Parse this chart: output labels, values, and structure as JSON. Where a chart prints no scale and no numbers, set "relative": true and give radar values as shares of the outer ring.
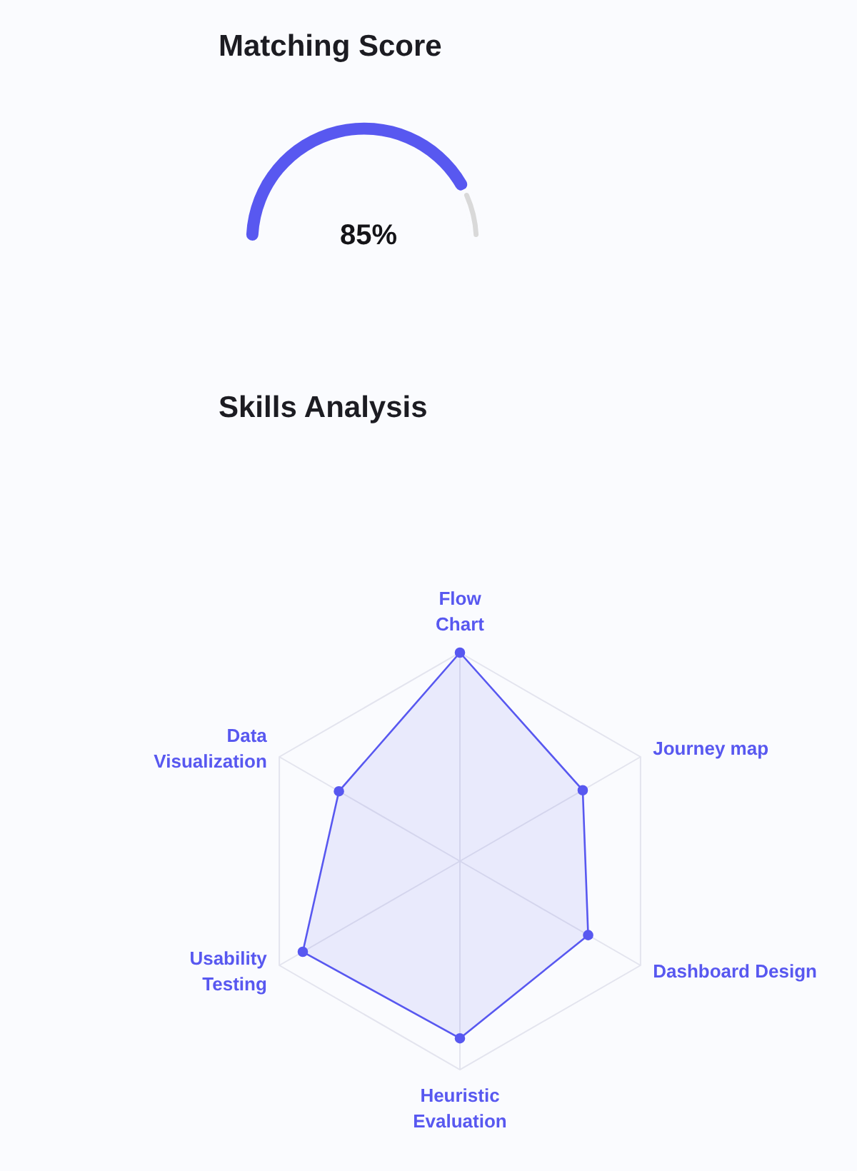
{
  "chart_data": [
    {
      "type": "donut",
      "title": "Matching Score",
      "categories": [
        null,
        null
      ],
      "values": [
        85,
        15
      ],
      "colors": [
        "#5858f0",
        "#d9d9d9"
      ],
      "annotations": [
        "85%"
      ]
    },
    {
      "type": "radar",
      "title": "Skills Analysis",
      "categories": [
        "Flow Chart",
        "Journey map",
        "Dashboard Design",
        "Heuristic Evaluation",
        "Usability Testing",
        "Data Visualization"
      ],
      "relative": true,
      "grid": true,
      "marker": "circle",
      "series": [
        {
          "color": "#5858f0",
          "values": [
            1,
            0.68,
            0.71,
            0.85,
            0.87,
            0.67
          ]
        }
      ]
    }
  ]
}
